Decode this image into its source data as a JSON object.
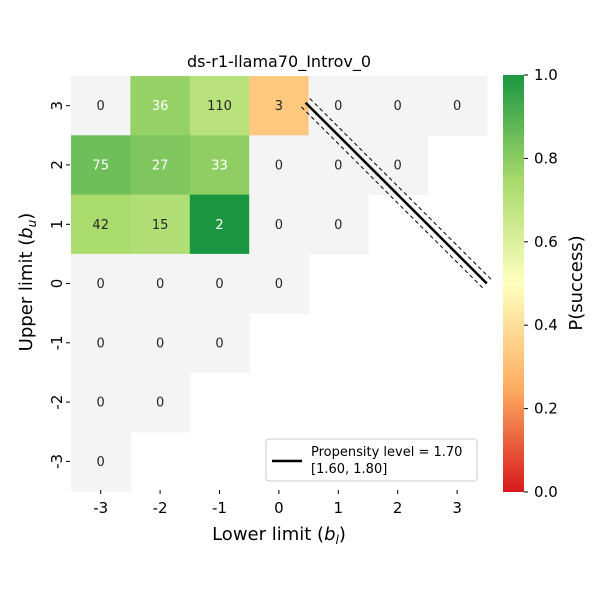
{
  "chart_data": {
    "type": "heatmap",
    "title": "ds-r1-llama70_Introv_0",
    "xlabel": "Lower limit ($b_l$)",
    "xlabel_text": "Lower limit (",
    "xlabel_var": "b",
    "xlabel_sub": "l",
    "ylabel_text": "Upper limit (",
    "ylabel_var": "b",
    "ylabel_sub": "u",
    "x_ticks": [
      "-3",
      "-2",
      "-1",
      "0",
      "1",
      "2",
      "3"
    ],
    "y_ticks": [
      "3",
      "2",
      "1",
      "0",
      "-1",
      "-2",
      "-3"
    ],
    "colorbar": {
      "label": "P(success)",
      "ticks": [
        "0.0",
        "0.2",
        "0.4",
        "0.6",
        "0.8",
        "1.0"
      ],
      "range": [
        0.0,
        1.0
      ]
    },
    "cells": [
      {
        "bl": -3,
        "bu": 3,
        "count": "0",
        "p": null
      },
      {
        "bl": -2,
        "bu": 3,
        "count": "36",
        "p": 0.78
      },
      {
        "bl": -1,
        "bu": 3,
        "count": "110",
        "p": 0.7
      },
      {
        "bl": 0,
        "bu": 3,
        "count": "3",
        "p": 0.33
      },
      {
        "bl": 1,
        "bu": 3,
        "count": "0",
        "p": null
      },
      {
        "bl": 2,
        "bu": 3,
        "count": "0",
        "p": null
      },
      {
        "bl": 3,
        "bu": 3,
        "count": "0",
        "p": null
      },
      {
        "bl": -3,
        "bu": 2,
        "count": "75",
        "p": 0.85
      },
      {
        "bl": -2,
        "bu": 2,
        "count": "27",
        "p": 0.82
      },
      {
        "bl": -1,
        "bu": 2,
        "count": "33",
        "p": 0.79
      },
      {
        "bl": 0,
        "bu": 2,
        "count": "0",
        "p": null
      },
      {
        "bl": 1,
        "bu": 2,
        "count": "0",
        "p": null
      },
      {
        "bl": 2,
        "bu": 2,
        "count": "0",
        "p": null
      },
      {
        "bl": -3,
        "bu": 1,
        "count": "42",
        "p": 0.74
      },
      {
        "bl": -2,
        "bu": 1,
        "count": "15",
        "p": 0.72
      },
      {
        "bl": -1,
        "bu": 1,
        "count": "2",
        "p": 1.0
      },
      {
        "bl": 0,
        "bu": 1,
        "count": "0",
        "p": null
      },
      {
        "bl": 1,
        "bu": 1,
        "count": "0",
        "p": null
      },
      {
        "bl": -3,
        "bu": 0,
        "count": "0",
        "p": null
      },
      {
        "bl": -2,
        "bu": 0,
        "count": "0",
        "p": null
      },
      {
        "bl": -1,
        "bu": 0,
        "count": "0",
        "p": null
      },
      {
        "bl": 0,
        "bu": 0,
        "count": "0",
        "p": null
      },
      {
        "bl": -3,
        "bu": -1,
        "count": "0",
        "p": null
      },
      {
        "bl": -2,
        "bu": -1,
        "count": "0",
        "p": null
      },
      {
        "bl": -1,
        "bu": -1,
        "count": "0",
        "p": null
      },
      {
        "bl": -3,
        "bu": -2,
        "count": "0",
        "p": null
      },
      {
        "bl": -2,
        "bu": -2,
        "count": "0",
        "p": null
      },
      {
        "bl": -3,
        "bu": -3,
        "count": "0",
        "p": null
      }
    ],
    "propensity_line": {
      "level": 1.7,
      "band": [
        1.6,
        1.8
      ],
      "points": [
        [
          0.45,
          3.05
        ],
        [
          3.5,
          0.0
        ]
      ]
    },
    "legend": {
      "line1": "Propensity level = 1.70",
      "line2": "[1.60, 1.80]",
      "position": "lower-right"
    }
  }
}
